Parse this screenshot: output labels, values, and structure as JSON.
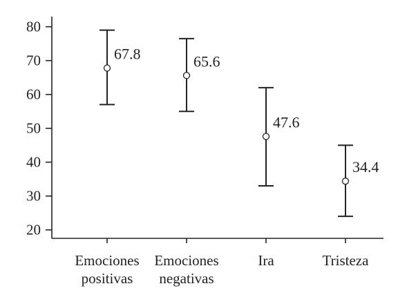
{
  "chart_data": {
    "type": "scatter",
    "subtype": "error-bar",
    "categories": [
      [
        "Emociones",
        "positivas"
      ],
      [
        "Emociones",
        "negativas"
      ],
      [
        "Ira"
      ],
      [
        "Tristeza"
      ]
    ],
    "series": [
      {
        "values": [
          67.8,
          65.6,
          47.6,
          34.4
        ],
        "lower": [
          57,
          55,
          33,
          24
        ],
        "upper": [
          79,
          76.5,
          62,
          45
        ],
        "labels": [
          "67.8",
          "65.6",
          "47.6",
          "34.4"
        ]
      }
    ],
    "yticks": [
      "20",
      "30",
      "40",
      "50",
      "60",
      "70",
      "80"
    ],
    "ylim": [
      17.5,
      83
    ],
    "title": "",
    "xlabel": "",
    "ylabel": "",
    "grid": false,
    "colors": {
      "ink": "#222222",
      "background": "#ffffff"
    }
  }
}
